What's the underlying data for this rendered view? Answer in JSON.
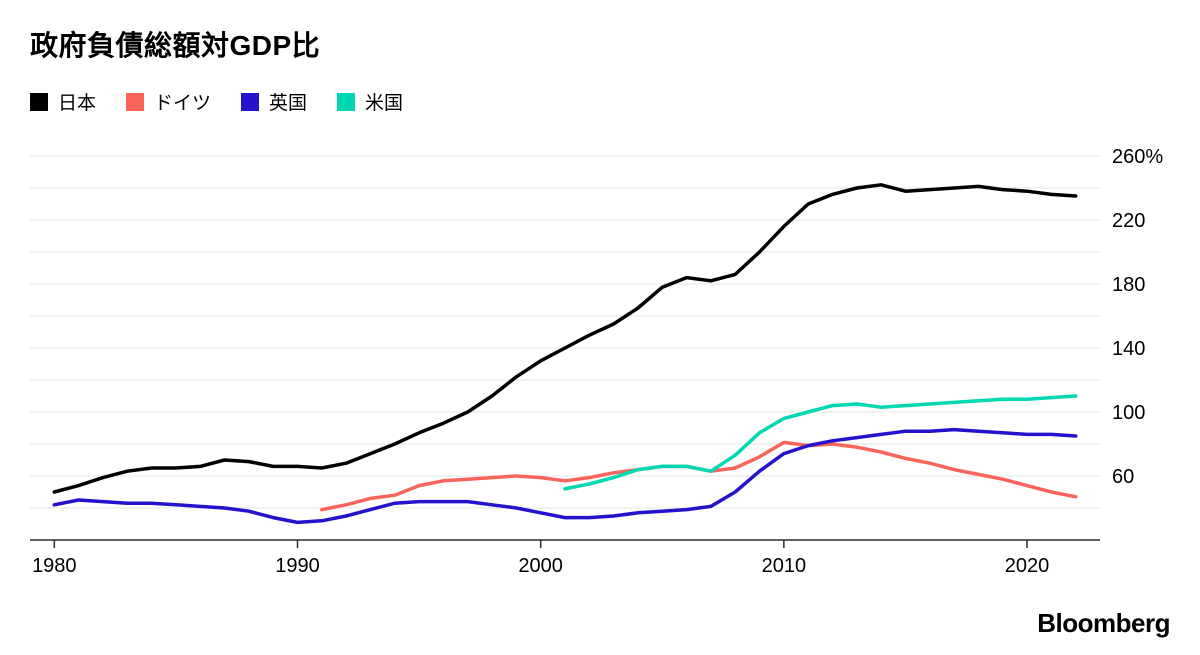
{
  "chart_data": {
    "type": "line",
    "title": "政府負債総額対GDP比",
    "y_unit": "%",
    "xlim": [
      1979,
      2023
    ],
    "ylim": [
      20,
      260
    ],
    "x_ticks": [
      1980,
      1990,
      2000,
      2010,
      2020
    ],
    "y_ticks": [
      60,
      100,
      140,
      180,
      220,
      260
    ],
    "gridline_step": 20,
    "grid": "horizontal-only",
    "legend_position": "top-left",
    "colors": {
      "gridline": "#e6e6e6",
      "axis": "#2b2b2b",
      "tick_text": "#000000"
    },
    "series": [
      {
        "key": "japan",
        "name": "日本",
        "color": "#000000",
        "start_year": 1980,
        "values": [
          50,
          54,
          59,
          63,
          65,
          65,
          66,
          70,
          69,
          66,
          66,
          65,
          68,
          74,
          80,
          87,
          93,
          100,
          110,
          122,
          132,
          140,
          148,
          155,
          165,
          178,
          184,
          182,
          186,
          200,
          216,
          230,
          236,
          240,
          242,
          238,
          239,
          240,
          241,
          239,
          238,
          236,
          235
        ]
      },
      {
        "key": "germany",
        "name": "ドイツ",
        "color": "#f9655b",
        "start_year": 1991,
        "values": [
          39,
          42,
          46,
          48,
          54,
          57,
          58,
          59,
          60,
          59,
          57,
          59,
          62,
          64,
          66,
          66,
          63,
          65,
          72,
          81,
          79,
          80,
          78,
          75,
          71,
          68,
          64,
          61,
          58,
          54,
          50,
          47
        ]
      },
      {
        "key": "uk",
        "name": "英国",
        "color": "#2512cd",
        "start_year": 1980,
        "values": [
          42,
          45,
          44,
          43,
          43,
          42,
          41,
          40,
          38,
          34,
          31,
          32,
          35,
          39,
          43,
          44,
          44,
          44,
          42,
          40,
          37,
          34,
          34,
          35,
          37,
          38,
          39,
          41,
          50,
          63,
          74,
          79,
          82,
          84,
          86,
          88,
          88,
          89,
          88,
          87,
          86,
          86,
          85
        ]
      },
      {
        "key": "us",
        "name": "米国",
        "color": "#00d8b1",
        "start_year": 2001,
        "values": [
          52,
          55,
          59,
          64,
          66,
          66,
          63,
          73,
          87,
          96,
          100,
          104,
          105,
          103,
          104,
          105,
          106,
          107,
          108,
          108,
          109,
          110
        ]
      }
    ]
  },
  "footer": {
    "brand": "Bloomberg"
  }
}
